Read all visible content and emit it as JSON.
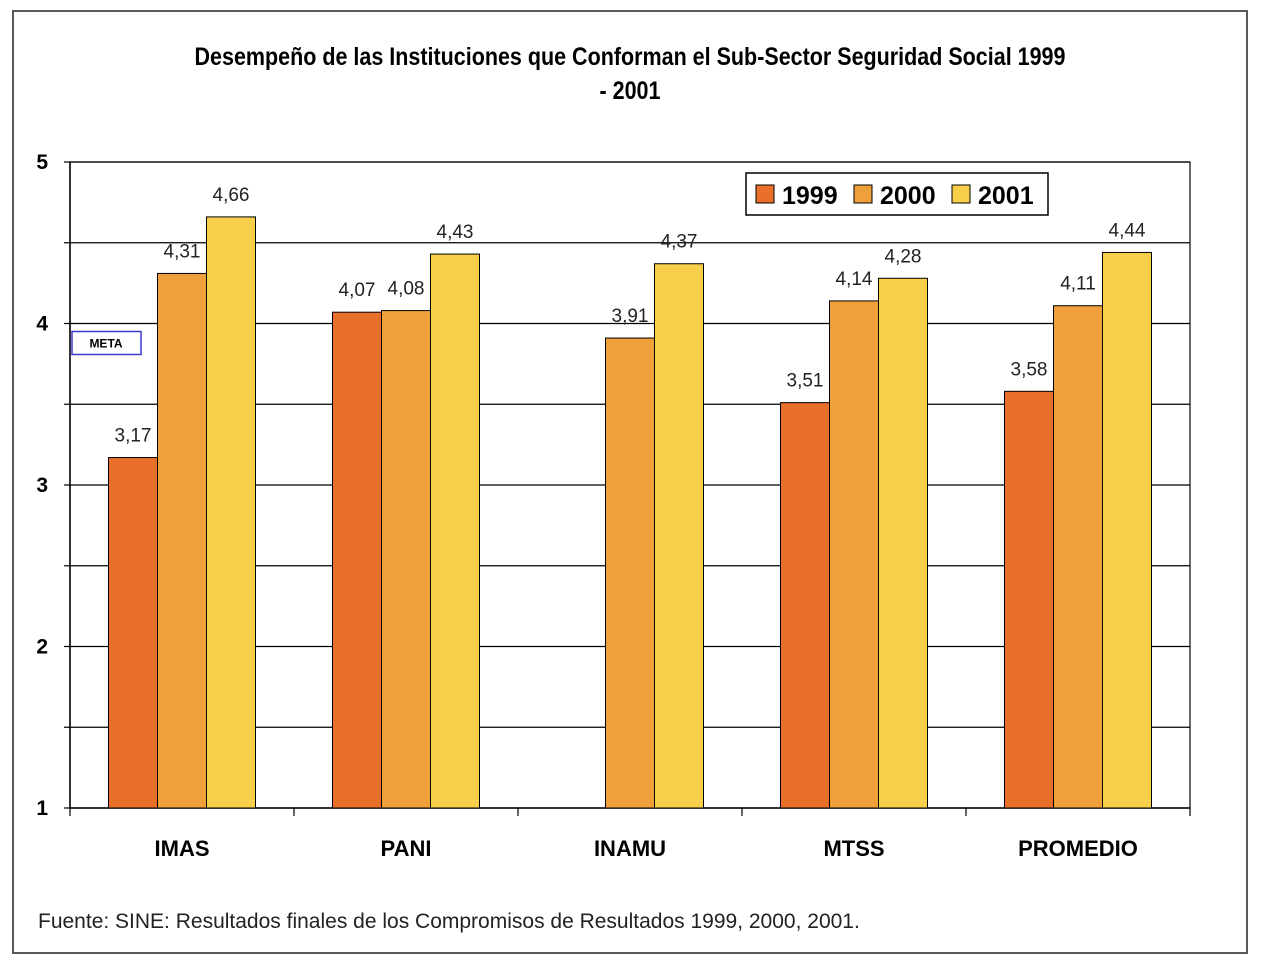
{
  "chart_data": {
    "type": "bar",
    "title": "Desempeño de las Instituciones que Conforman el Sub-Sector Seguridad Social 1999 - 2001",
    "categories": [
      "IMAS",
      "PANI",
      "INAMU",
      "MTSS",
      "PROMEDIO"
    ],
    "series": [
      {
        "name": "1999",
        "color": "#E8702A",
        "values": [
          3.17,
          4.07,
          null,
          3.51,
          3.58
        ],
        "labels": [
          "3,17",
          "4,07",
          null,
          "3,51",
          "3,58"
        ]
      },
      {
        "name": "2000",
        "color": "#F0A03A",
        "values": [
          4.31,
          4.08,
          3.91,
          4.14,
          4.11
        ],
        "labels": [
          "4,31",
          "4,08",
          "3,91",
          "4,14",
          "4,11"
        ]
      },
      {
        "name": "2001",
        "color": "#F7CF4A",
        "values": [
          4.66,
          4.43,
          4.37,
          4.28,
          4.44
        ],
        "labels": [
          "4,66",
          "4,43",
          "4,37",
          "4,28",
          "4,44"
        ]
      }
    ],
    "ylim": [
      1,
      5
    ],
    "yticks": [
      1,
      2,
      3,
      4,
      5
    ],
    "grid": true,
    "legend_position": "top-right",
    "annotation": {
      "text": "META",
      "value": 4
    }
  },
  "footer": {
    "source": "Fuente: SINE: Resultados finales de los Compromisos de Resultados 1999, 2000, 2001."
  }
}
